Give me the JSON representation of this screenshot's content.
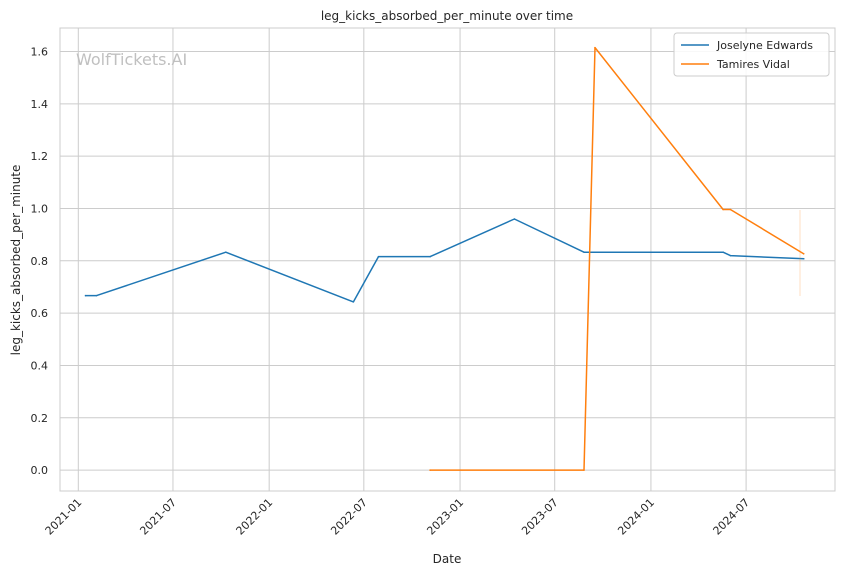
{
  "chart_data": {
    "type": "line",
    "title": "leg_kicks_absorbed_per_minute over time",
    "xlabel": "Date",
    "ylabel": "leg_kicks_absorbed_per_minute",
    "watermark": "WolfTickets.AI",
    "x_axis_type": "date",
    "xlim": [
      "2020-11-27",
      "2024-12-18"
    ],
    "ylim": [
      -0.08,
      1.69
    ],
    "x_ticks": [
      {
        "date": "2021-01-01",
        "label": "2021-01"
      },
      {
        "date": "2021-07-01",
        "label": "2021-07"
      },
      {
        "date": "2022-01-01",
        "label": "2022-01"
      },
      {
        "date": "2022-07-01",
        "label": "2022-07"
      },
      {
        "date": "2023-01-01",
        "label": "2023-01"
      },
      {
        "date": "2023-07-01",
        "label": "2023-07"
      },
      {
        "date": "2024-01-01",
        "label": "2024-01"
      },
      {
        "date": "2024-07-01",
        "label": "2024-07"
      }
    ],
    "y_ticks": [
      {
        "value": 0.0,
        "label": "0.0"
      },
      {
        "value": 0.2,
        "label": "0.2"
      },
      {
        "value": 0.4,
        "label": "0.4"
      },
      {
        "value": 0.6,
        "label": "0.6"
      },
      {
        "value": 0.8,
        "label": "0.8"
      },
      {
        "value": 1.0,
        "label": "1.0"
      },
      {
        "value": 1.2,
        "label": "1.2"
      },
      {
        "value": 1.4,
        "label": "1.4"
      },
      {
        "value": 1.6,
        "label": "1.6"
      }
    ],
    "grid": true,
    "legend_position": "top-right",
    "series": [
      {
        "name": "Joselyne Edwards",
        "color": "#1f77b4",
        "points": [
          {
            "x": "2021-01-15",
            "y": 0.667
          },
          {
            "x": "2021-02-05",
            "y": 0.667
          },
          {
            "x": "2021-10-10",
            "y": 0.833
          },
          {
            "x": "2022-06-11",
            "y": 0.643
          },
          {
            "x": "2022-07-29",
            "y": 0.816
          },
          {
            "x": "2022-11-05",
            "y": 0.816
          },
          {
            "x": "2023-04-15",
            "y": 0.96
          },
          {
            "x": "2023-08-26",
            "y": 0.833
          },
          {
            "x": "2024-05-18",
            "y": 0.833
          },
          {
            "x": "2024-06-01",
            "y": 0.82
          },
          {
            "x": "2024-10-19",
            "y": 0.808
          }
        ]
      },
      {
        "name": "Tamires Vidal",
        "color": "#ff7f0e",
        "points": [
          {
            "x": "2022-11-05",
            "y": 0.0
          },
          {
            "x": "2023-08-26",
            "y": 0.0
          },
          {
            "x": "2023-09-16",
            "y": 1.615
          },
          {
            "x": "2024-05-18",
            "y": 0.996
          },
          {
            "x": "2024-06-01",
            "y": 0.996
          },
          {
            "x": "2024-10-19",
            "y": 0.827
          }
        ]
      }
    ]
  }
}
